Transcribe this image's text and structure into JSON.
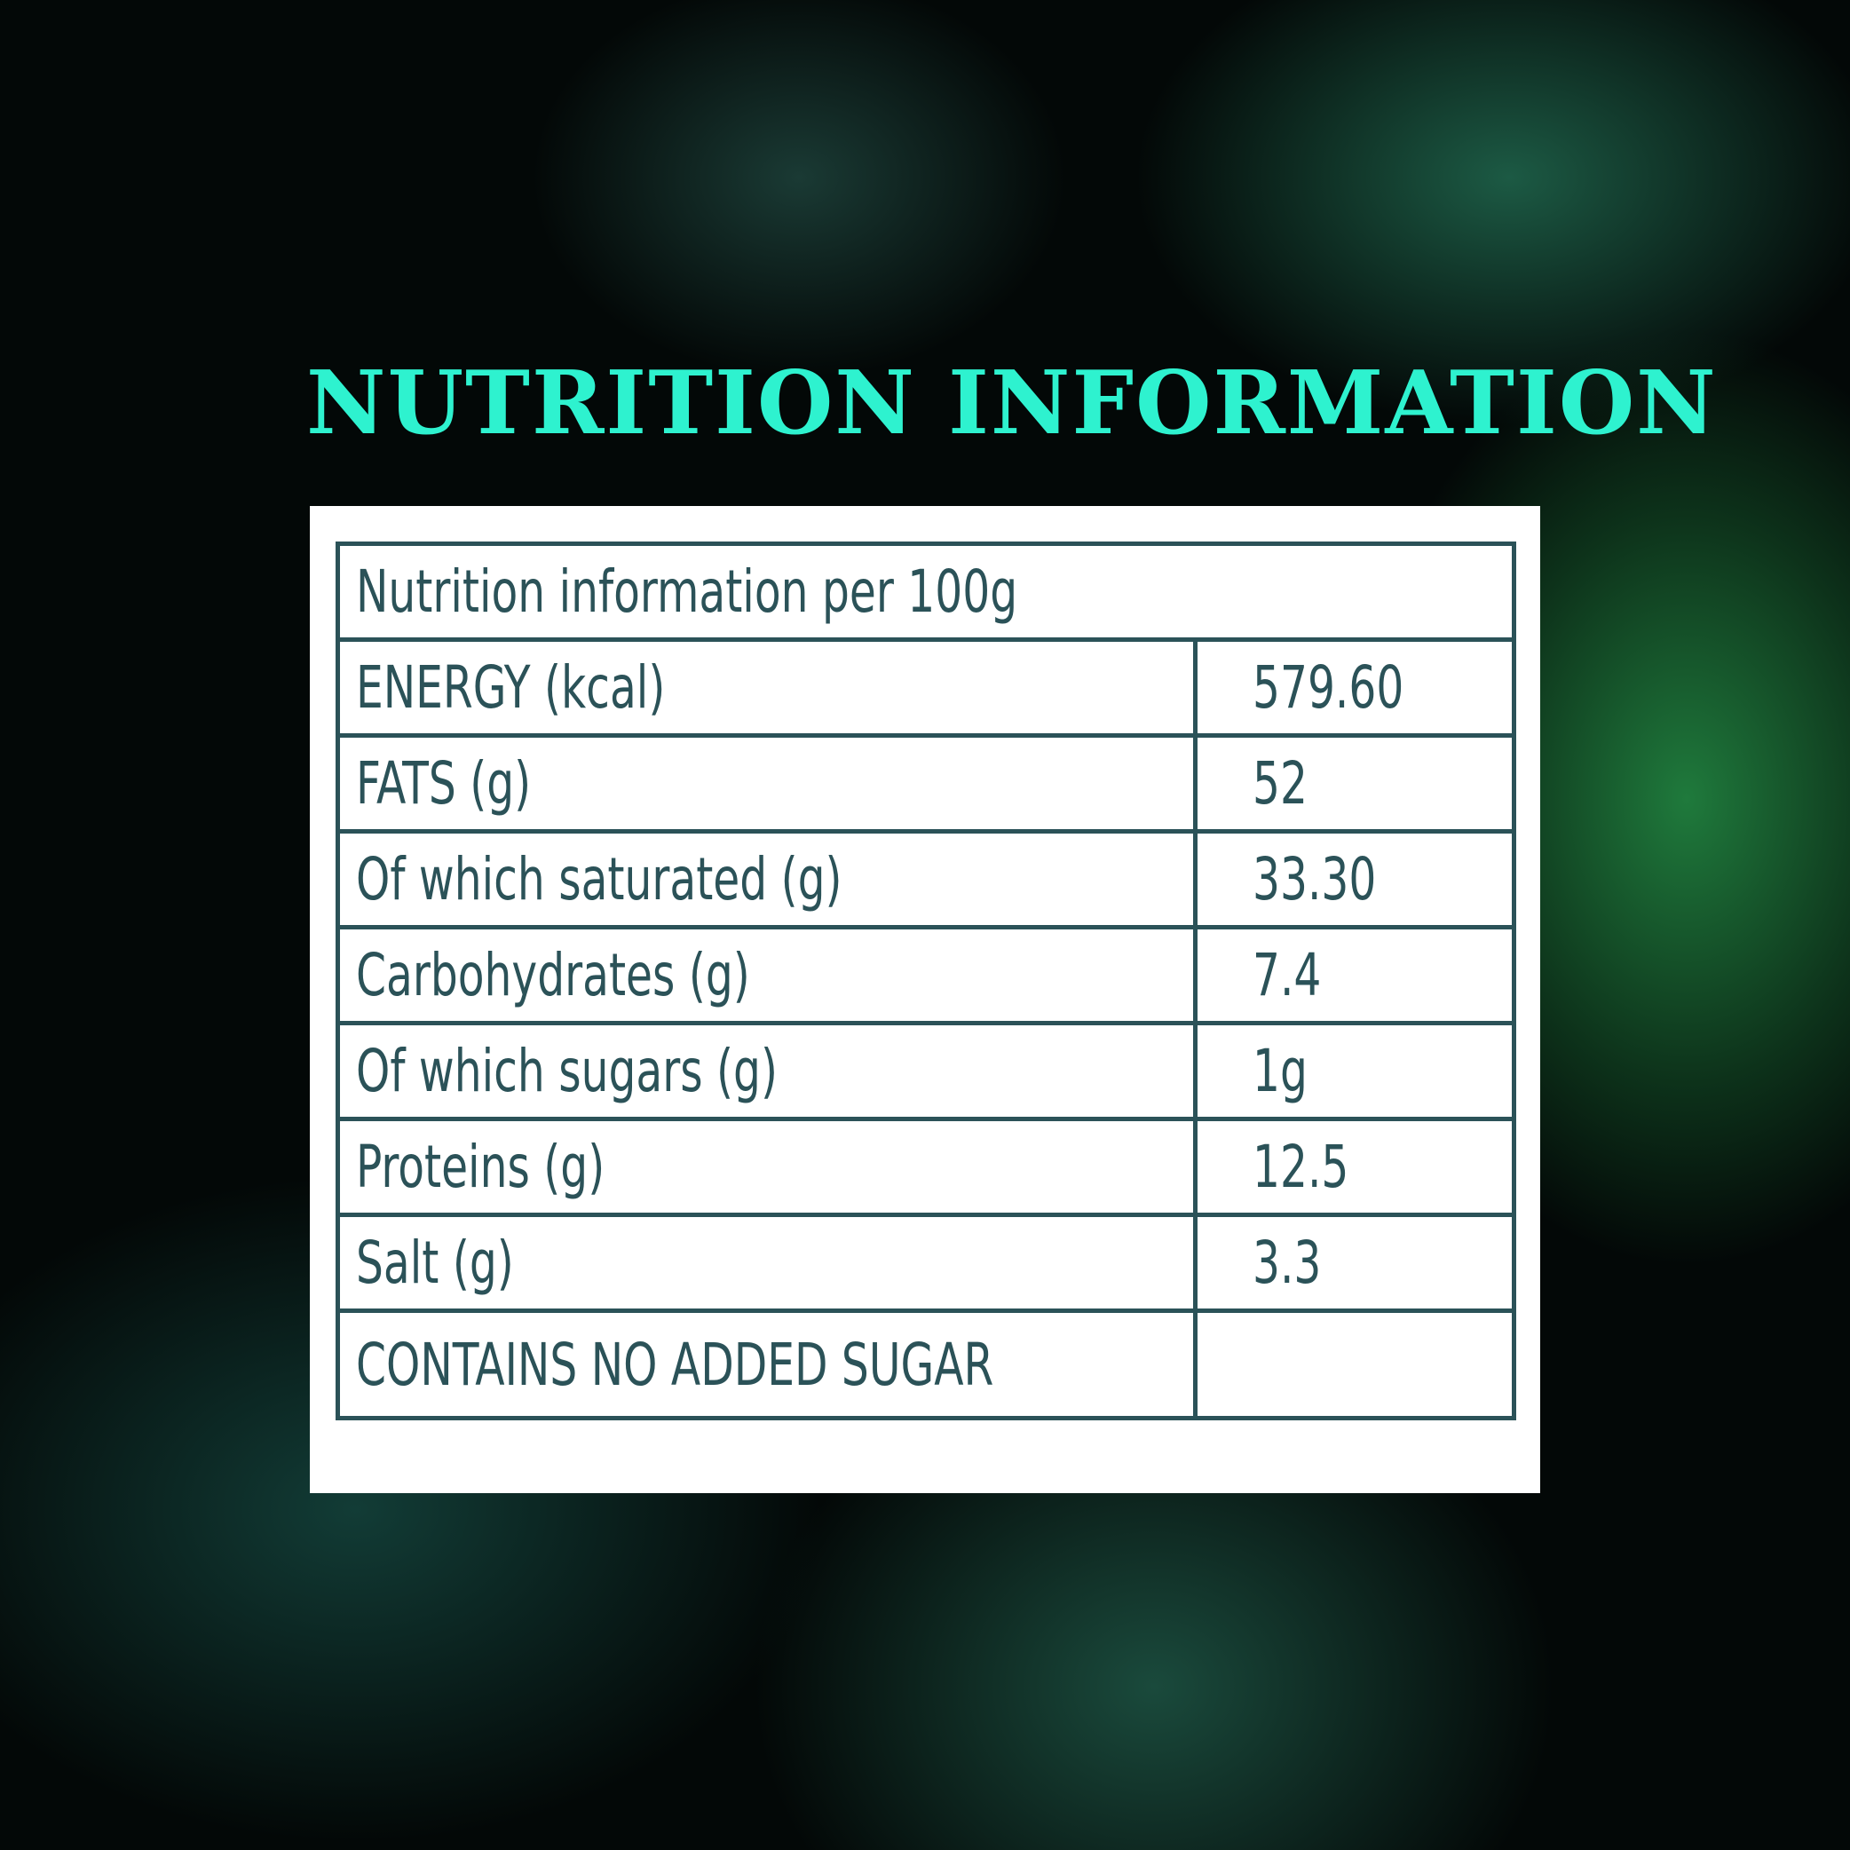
{
  "title": "NUTRITION INFORMATION",
  "colors": {
    "title": "#2ef2cf",
    "table_text": "#2b5258",
    "panel": "#ffffff"
  },
  "table": {
    "header": "Nutrition information per 100g",
    "rows": [
      {
        "label": "ENERGY (kcal)",
        "value": "579.60"
      },
      {
        "label": "FATS (g)",
        "value": "52"
      },
      {
        "label": "Of which saturated (g)",
        "value": "33.30"
      },
      {
        "label": "Carbohydrates (g)",
        "value": "7.4"
      },
      {
        "label": "Of which sugars (g)",
        "value": "1g"
      },
      {
        "label": "Proteins (g)",
        "value": "12.5"
      },
      {
        "label": "Salt (g)",
        "value": "3.3"
      },
      {
        "label": "CONTAINS NO ADDED SUGAR",
        "value": ""
      }
    ]
  }
}
